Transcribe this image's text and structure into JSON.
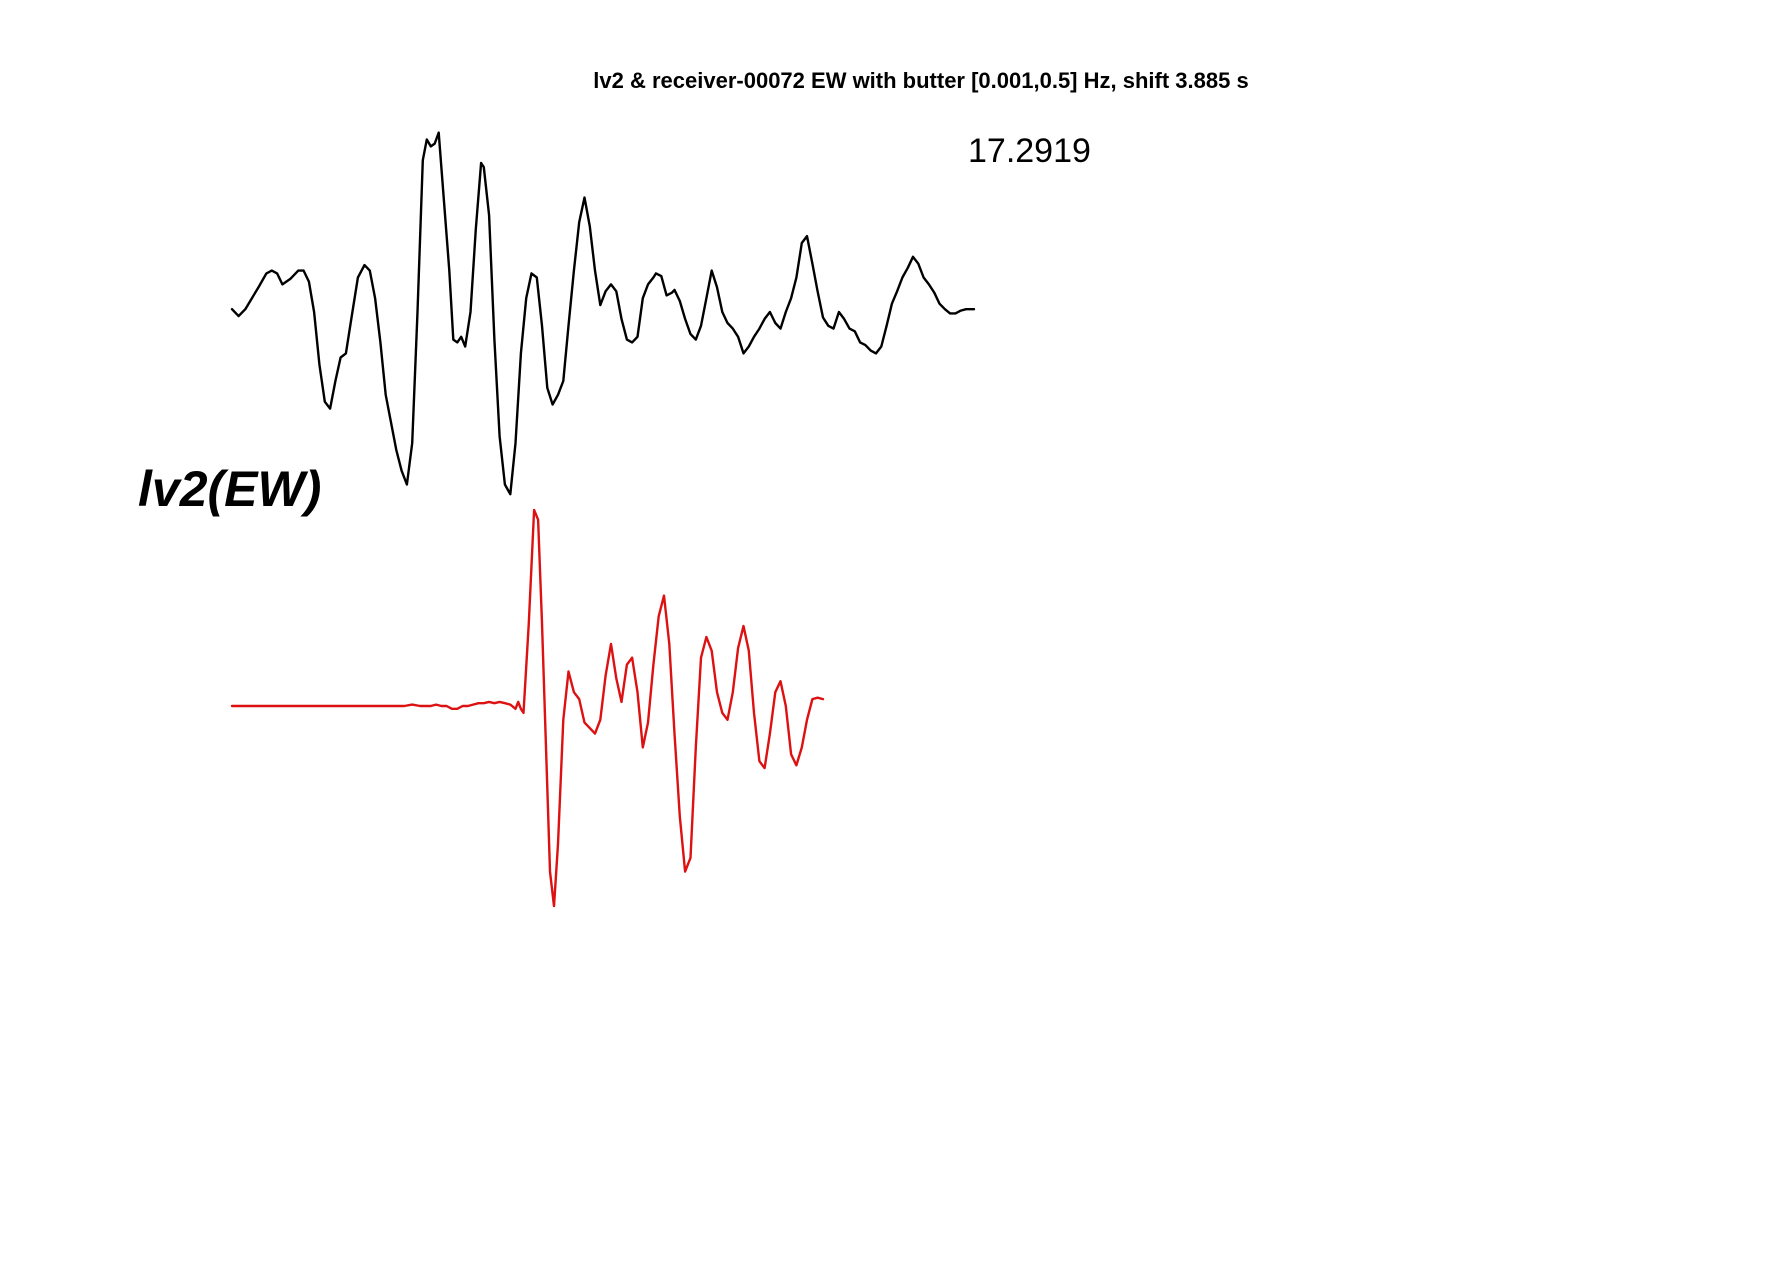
{
  "chart_data": {
    "type": "line",
    "title": "lv2 & receiver-00072 EW with butter [0.001,0.5] Hz, shift 3.885 s",
    "annotation": "17.2919",
    "station_label": "lv2(EW)",
    "xlabel": "",
    "ylabel": "",
    "grid": false,
    "axes_visible": false,
    "series": [
      {
        "color": "#000000",
        "points": [
          [
            0,
            0.02
          ],
          [
            0.05,
            -0.03
          ],
          [
            0.1,
            0.02
          ],
          [
            0.15,
            0.1
          ],
          [
            0.2,
            0.18
          ],
          [
            0.26,
            0.28
          ],
          [
            0.3,
            0.3
          ],
          [
            0.34,
            0.28
          ],
          [
            0.38,
            0.2
          ],
          [
            0.44,
            0.24
          ],
          [
            0.5,
            0.3
          ],
          [
            0.54,
            0.3
          ],
          [
            0.58,
            0.22
          ],
          [
            0.62,
            0.0
          ],
          [
            0.66,
            -0.38
          ],
          [
            0.7,
            -0.65
          ],
          [
            0.74,
            -0.7
          ],
          [
            0.78,
            -0.5
          ],
          [
            0.82,
            -0.33
          ],
          [
            0.86,
            -0.3
          ],
          [
            0.9,
            -0.05
          ],
          [
            0.95,
            0.25
          ],
          [
            1.0,
            0.34
          ],
          [
            1.04,
            0.3
          ],
          [
            1.08,
            0.1
          ],
          [
            1.12,
            -0.22
          ],
          [
            1.16,
            -0.6
          ],
          [
            1.2,
            -0.8
          ],
          [
            1.24,
            -1.0
          ],
          [
            1.28,
            -1.15
          ],
          [
            1.32,
            -1.25
          ],
          [
            1.36,
            -0.95
          ],
          [
            1.4,
            0.0
          ],
          [
            1.44,
            1.1
          ],
          [
            1.47,
            1.25
          ],
          [
            1.5,
            1.2
          ],
          [
            1.53,
            1.22
          ],
          [
            1.56,
            1.3
          ],
          [
            1.6,
            0.8
          ],
          [
            1.64,
            0.3
          ],
          [
            1.67,
            -0.2
          ],
          [
            1.7,
            -0.22
          ],
          [
            1.73,
            -0.18
          ],
          [
            1.76,
            -0.25
          ],
          [
            1.8,
            0.0
          ],
          [
            1.84,
            0.6
          ],
          [
            1.88,
            1.08
          ],
          [
            1.9,
            1.05
          ],
          [
            1.94,
            0.7
          ],
          [
            1.98,
            -0.2
          ],
          [
            2.02,
            -0.9
          ],
          [
            2.06,
            -1.25
          ],
          [
            2.1,
            -1.32
          ],
          [
            2.14,
            -0.95
          ],
          [
            2.18,
            -0.3
          ],
          [
            2.22,
            0.1
          ],
          [
            2.26,
            0.28
          ],
          [
            2.3,
            0.25
          ],
          [
            2.34,
            -0.1
          ],
          [
            2.38,
            -0.55
          ],
          [
            2.42,
            -0.67
          ],
          [
            2.46,
            -0.6
          ],
          [
            2.5,
            -0.5
          ],
          [
            2.54,
            -0.1
          ],
          [
            2.58,
            0.3
          ],
          [
            2.62,
            0.65
          ],
          [
            2.66,
            0.83
          ],
          [
            2.7,
            0.62
          ],
          [
            2.74,
            0.3
          ],
          [
            2.78,
            0.05
          ],
          [
            2.82,
            0.15
          ],
          [
            2.86,
            0.2
          ],
          [
            2.9,
            0.15
          ],
          [
            2.94,
            -0.05
          ],
          [
            2.98,
            -0.2
          ],
          [
            3.02,
            -0.22
          ],
          [
            3.06,
            -0.18
          ],
          [
            3.1,
            0.1
          ],
          [
            3.14,
            0.2
          ],
          [
            3.18,
            0.25
          ],
          [
            3.2,
            0.28
          ],
          [
            3.24,
            0.26
          ],
          [
            3.28,
            0.12
          ],
          [
            3.32,
            0.14
          ],
          [
            3.34,
            0.16
          ],
          [
            3.38,
            0.08
          ],
          [
            3.42,
            -0.05
          ],
          [
            3.46,
            -0.16
          ],
          [
            3.5,
            -0.2
          ],
          [
            3.54,
            -0.1
          ],
          [
            3.58,
            0.1
          ],
          [
            3.62,
            0.3
          ],
          [
            3.66,
            0.18
          ],
          [
            3.7,
            0.0
          ],
          [
            3.74,
            -0.08
          ],
          [
            3.78,
            -0.12
          ],
          [
            3.82,
            -0.18
          ],
          [
            3.86,
            -0.3
          ],
          [
            3.9,
            -0.25
          ],
          [
            3.94,
            -0.18
          ],
          [
            3.98,
            -0.12
          ],
          [
            4.02,
            -0.05
          ],
          [
            4.06,
            0.0
          ],
          [
            4.1,
            -0.08
          ],
          [
            4.14,
            -0.12
          ],
          [
            4.18,
            0.0
          ],
          [
            4.22,
            0.1
          ],
          [
            4.26,
            0.25
          ],
          [
            4.3,
            0.5
          ],
          [
            4.34,
            0.55
          ],
          [
            4.38,
            0.35
          ],
          [
            4.42,
            0.15
          ],
          [
            4.46,
            -0.04
          ],
          [
            4.5,
            -0.1
          ],
          [
            4.54,
            -0.12
          ],
          [
            4.58,
            0.0
          ],
          [
            4.62,
            -0.05
          ],
          [
            4.66,
            -0.12
          ],
          [
            4.7,
            -0.14
          ],
          [
            4.74,
            -0.22
          ],
          [
            4.78,
            -0.24
          ],
          [
            4.82,
            -0.28
          ],
          [
            4.86,
            -0.3
          ],
          [
            4.9,
            -0.25
          ],
          [
            4.94,
            -0.1
          ],
          [
            4.98,
            0.06
          ],
          [
            5.02,
            0.15
          ],
          [
            5.06,
            0.25
          ],
          [
            5.1,
            0.32
          ],
          [
            5.14,
            0.4
          ],
          [
            5.18,
            0.35
          ],
          [
            5.22,
            0.25
          ],
          [
            5.26,
            0.2
          ],
          [
            5.3,
            0.14
          ],
          [
            5.34,
            0.06
          ],
          [
            5.38,
            0.02
          ],
          [
            5.42,
            -0.01
          ],
          [
            5.46,
            -0.01
          ],
          [
            5.5,
            0.01
          ],
          [
            5.54,
            0.02
          ],
          [
            5.6,
            0.02
          ]
        ]
      },
      {
        "color": "#dd1111",
        "points": [
          [
            0,
            0.0
          ],
          [
            0.5,
            0.0
          ],
          [
            1.0,
            0.0
          ],
          [
            1.2,
            0.0
          ],
          [
            1.3,
            0.0
          ],
          [
            1.36,
            0.01
          ],
          [
            1.42,
            0.0
          ],
          [
            1.5,
            0.0
          ],
          [
            1.54,
            0.01
          ],
          [
            1.58,
            0.0
          ],
          [
            1.62,
            0.0
          ],
          [
            1.66,
            -0.02
          ],
          [
            1.7,
            -0.02
          ],
          [
            1.74,
            0.0
          ],
          [
            1.78,
            0.0
          ],
          [
            1.82,
            0.01
          ],
          [
            1.86,
            0.02
          ],
          [
            1.9,
            0.02
          ],
          [
            1.94,
            0.03
          ],
          [
            1.98,
            0.02
          ],
          [
            2.02,
            0.03
          ],
          [
            2.06,
            0.02
          ],
          [
            2.1,
            0.01
          ],
          [
            2.14,
            -0.02
          ],
          [
            2.16,
            0.03
          ],
          [
            2.18,
            -0.02
          ],
          [
            2.2,
            -0.05
          ],
          [
            2.24,
            0.6
          ],
          [
            2.28,
            1.42
          ],
          [
            2.31,
            1.35
          ],
          [
            2.34,
            0.6
          ],
          [
            2.37,
            -0.3
          ],
          [
            2.4,
            -1.2
          ],
          [
            2.43,
            -1.45
          ],
          [
            2.46,
            -1.0
          ],
          [
            2.5,
            -0.1
          ],
          [
            2.54,
            0.25
          ],
          [
            2.58,
            0.1
          ],
          [
            2.62,
            0.05
          ],
          [
            2.66,
            -0.12
          ],
          [
            2.7,
            -0.16
          ],
          [
            2.74,
            -0.2
          ],
          [
            2.78,
            -0.1
          ],
          [
            2.82,
            0.22
          ],
          [
            2.86,
            0.45
          ],
          [
            2.9,
            0.2
          ],
          [
            2.94,
            0.03
          ],
          [
            2.98,
            0.3
          ],
          [
            3.02,
            0.35
          ],
          [
            3.06,
            0.1
          ],
          [
            3.1,
            -0.3
          ],
          [
            3.14,
            -0.12
          ],
          [
            3.18,
            0.3
          ],
          [
            3.22,
            0.65
          ],
          [
            3.26,
            0.8
          ],
          [
            3.3,
            0.45
          ],
          [
            3.34,
            -0.2
          ],
          [
            3.38,
            -0.8
          ],
          [
            3.42,
            -1.2
          ],
          [
            3.46,
            -1.1
          ],
          [
            3.5,
            -0.3
          ],
          [
            3.54,
            0.35
          ],
          [
            3.58,
            0.5
          ],
          [
            3.62,
            0.4
          ],
          [
            3.66,
            0.1
          ],
          [
            3.7,
            -0.05
          ],
          [
            3.74,
            -0.1
          ],
          [
            3.78,
            0.1
          ],
          [
            3.82,
            0.42
          ],
          [
            3.86,
            0.58
          ],
          [
            3.9,
            0.4
          ],
          [
            3.94,
            -0.05
          ],
          [
            3.98,
            -0.4
          ],
          [
            4.02,
            -0.45
          ],
          [
            4.06,
            -0.2
          ],
          [
            4.1,
            0.1
          ],
          [
            4.14,
            0.18
          ],
          [
            4.18,
            0.0
          ],
          [
            4.22,
            -0.35
          ],
          [
            4.26,
            -0.43
          ],
          [
            4.3,
            -0.3
          ],
          [
            4.34,
            -0.1
          ],
          [
            4.38,
            0.05
          ],
          [
            4.42,
            0.06
          ],
          [
            4.46,
            0.05
          ]
        ]
      }
    ]
  }
}
